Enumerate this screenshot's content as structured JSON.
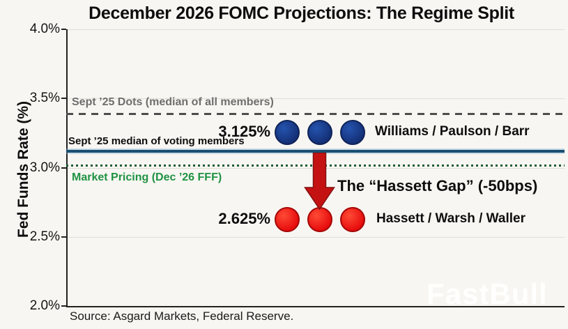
{
  "chart_data": {
    "type": "scatter",
    "title": "December 2026 FOMC Projections: The Regime Split",
    "ylabel": "Fed Funds Rate (%)",
    "ylim": [
      2.0,
      4.0
    ],
    "ytick_labels": [
      "4.0%",
      "3.5%",
      "3.0%",
      "2.5%",
      "2.0%"
    ],
    "grid": true,
    "legend_position": "none",
    "reference_lines": [
      {
        "label": "Sept ’25 Dots (median of all members)",
        "value": 3.375,
        "style": "dashed",
        "color": "#4d4d4d"
      },
      {
        "label": "Sept ’25 median of voting members",
        "value": 3.125,
        "style": "solid",
        "color": "#1b4f72"
      },
      {
        "label": "Market Pricing (Dec ’26 FFF)",
        "value": 3.0,
        "style": "dotted",
        "color": "#1f9243"
      }
    ],
    "series": [
      {
        "name": "Williams / Paulson / Barr",
        "rate": 3.125,
        "value_label": "3.125%",
        "dots": 3,
        "color": "#16377f"
      },
      {
        "name": "Hassett / Warsh / Waller",
        "rate": 2.625,
        "value_label": "2.625%",
        "dots": 3,
        "color": "#e81010"
      }
    ],
    "annotation": {
      "text": "The “Hassett Gap” (-50bps)",
      "arrow_color": "#c41212",
      "drop_bps": -50
    },
    "source": "Source: Asgard Markets, Federal Reserve.",
    "watermark": "FastBull"
  }
}
